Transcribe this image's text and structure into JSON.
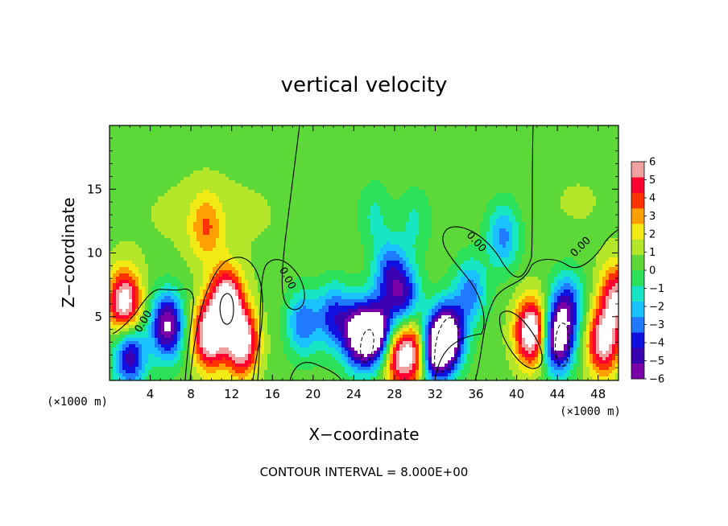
{
  "chart_data": {
    "type": "heatmap",
    "title": "vertical velocity",
    "xlabel": "X−coordinate",
    "ylabel": "Z−coordinate",
    "x_unit_left": "(×1000 m)",
    "x_unit_right": "(×1000 m)",
    "xlim": [
      0,
      50
    ],
    "ylim": [
      0,
      20
    ],
    "x_ticks": [
      4,
      8,
      12,
      16,
      20,
      24,
      28,
      32,
      36,
      40,
      44,
      48
    ],
    "x_tick_labels": [
      "4",
      "8",
      "12",
      "16",
      "20",
      "24",
      "28",
      "32",
      "36",
      "40",
      "44",
      "48"
    ],
    "y_ticks": [
      5,
      10,
      15
    ],
    "y_tick_labels": [
      "5",
      "10",
      "15"
    ],
    "contour_note": "CONTOUR INTERVAL = 8.000E+00",
    "contour_labels": [
      {
        "text": "0.00",
        "x": 3.6,
        "y": 4.5,
        "angle": -60
      },
      {
        "text": "0.00",
        "x": 17.2,
        "y": 7.9,
        "angle": 62
      },
      {
        "text": "0.00",
        "x": 35.8,
        "y": 10.7,
        "angle": 48
      },
      {
        "text": "0.00",
        "x": 46.5,
        "y": 10.3,
        "angle": -45
      }
    ],
    "colorbar": {
      "min": -6,
      "max": 6,
      "tick_labels": [
        "6",
        "5",
        "4",
        "3",
        "2",
        "1",
        "0",
        "−1",
        "−2",
        "−3",
        "−4",
        "−5",
        "−6"
      ],
      "colors": [
        "#7a00a8",
        "#3b00b0",
        "#1010e0",
        "#1f7aff",
        "#19c2ff",
        "#16e6c4",
        "#2de05a",
        "#5cd838",
        "#b4e62a",
        "#f2ea14",
        "#ffa000",
        "#ff3200",
        "#ff0030",
        "#f0a0a0"
      ]
    },
    "features": [
      {
        "x": 1.5,
        "y": 6.0,
        "w": 0.9
      },
      {
        "x": 11.5,
        "y": 6.2,
        "w": 0.9
      },
      {
        "x": 13.0,
        "y": 3.0,
        "w": 0.9
      },
      {
        "x": 9.8,
        "y": 3.5,
        "w": 0.9
      },
      {
        "x": 41.5,
        "y": 3.8,
        "w": 1.0
      },
      {
        "x": 48.5,
        "y": 3.0,
        "w": 0.8
      },
      {
        "x": 49.8,
        "y": 6.5,
        "w": 0.7
      },
      {
        "x": 30.0,
        "y": 2.2,
        "w": 0.8
      },
      {
        "x": 28.0,
        "y": 2.0,
        "w": 0.65
      },
      {
        "x": 9.5,
        "y": 12.0,
        "w": 0.35
      },
      {
        "x": 5.7,
        "y": 4.3,
        "w": -0.9
      },
      {
        "x": 2.0,
        "y": 2.0,
        "w": -0.75
      },
      {
        "x": 24.5,
        "y": 3.6,
        "w": -1.0
      },
      {
        "x": 26.5,
        "y": 3.6,
        "w": -1.0
      },
      {
        "x": 33.3,
        "y": 3.5,
        "w": -1.0
      },
      {
        "x": 31.8,
        "y": 2.3,
        "w": -0.95
      },
      {
        "x": 44.0,
        "y": 3.2,
        "w": -1.0
      },
      {
        "x": 29.0,
        "y": 6.5,
        "w": -0.6
      },
      {
        "x": 27.5,
        "y": 8.5,
        "w": -0.5
      },
      {
        "x": 22.0,
        "y": 5.0,
        "w": -0.55
      },
      {
        "x": 38.7,
        "y": 11.3,
        "w": -0.45
      },
      {
        "x": 19.0,
        "y": 4.5,
        "w": -0.5
      },
      {
        "x": 45.0,
        "y": 6.0,
        "w": -0.55
      },
      {
        "x": 35.5,
        "y": 7.0,
        "w": -0.45
      },
      {
        "x": 26.0,
        "y": 13.0,
        "w": -0.2
      },
      {
        "x": 30.0,
        "y": 12.5,
        "w": -0.2
      }
    ]
  }
}
